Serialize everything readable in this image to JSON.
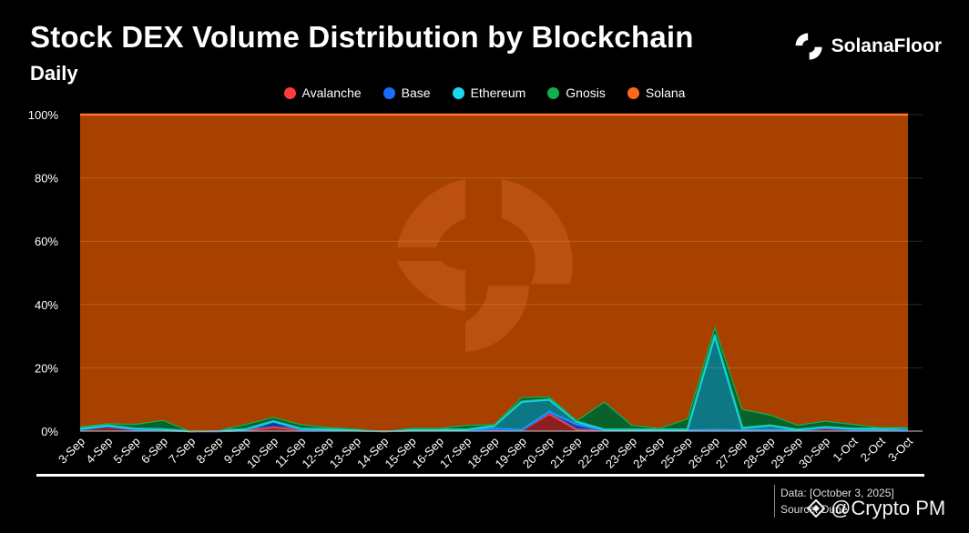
{
  "header": {
    "title": "Stock DEX Volume Distribution by Blockchain",
    "subtitle": "Daily",
    "brand": "SolanaFloor"
  },
  "note": {
    "date": "Data: [October 3, 2025]",
    "source": "Source: Dune"
  },
  "watermark": {
    "text": "@Crypto PM"
  },
  "chart_data": {
    "type": "area",
    "stacked": true,
    "normalized": true,
    "categories": [
      "3-Sep",
      "4-Sep",
      "5-Sep",
      "6-Sep",
      "7-Sep",
      "8-Sep",
      "9-Sep",
      "10-Sep",
      "11-Sep",
      "12-Sep",
      "13-Sep",
      "14-Sep",
      "15-Sep",
      "16-Sep",
      "17-Sep",
      "18-Sep",
      "19-Sep",
      "20-Sep",
      "21-Sep",
      "22-Sep",
      "23-Sep",
      "24-Sep",
      "25-Sep",
      "26-Sep",
      "27-Sep",
      "28-Sep",
      "29-Sep",
      "30-Sep",
      "1-Oct",
      "2-Oct",
      "3-Oct"
    ],
    "yticks": [
      "0%",
      "20%",
      "40%",
      "60%",
      "80%",
      "100%"
    ],
    "ylim": [
      0,
      100
    ],
    "legend_position": "top-center",
    "grid": true,
    "series": [
      {
        "name": "Avalanche",
        "color": "#ff3b3b",
        "values": [
          0.5,
          1.5,
          0.5,
          0.3,
          0,
          0,
          0.3,
          1.2,
          0.5,
          0.3,
          0.2,
          0,
          0.2,
          0.2,
          0.2,
          0.2,
          0.3,
          5.5,
          0.5,
          0.2,
          0.2,
          0.2,
          0.2,
          0.3,
          0.2,
          0.3,
          0.2,
          1.0,
          0.5,
          0.3,
          0.3
        ]
      },
      {
        "name": "Base",
        "color": "#1a6cff",
        "values": [
          0,
          0,
          0,
          0,
          0,
          0,
          0,
          1.8,
          0,
          0,
          0,
          0,
          0,
          0,
          0,
          0.5,
          0,
          0.5,
          1.5,
          0,
          0,
          0,
          0,
          0,
          0,
          0,
          0,
          0,
          0,
          0,
          0
        ]
      },
      {
        "name": "Ethereum",
        "color": "#1ad8f0",
        "values": [
          0.3,
          0.3,
          0.3,
          0.3,
          0,
          0.2,
          0.3,
          0.2,
          0.3,
          0.3,
          0.3,
          0.1,
          0.3,
          0.3,
          0.3,
          1.0,
          9.0,
          4.0,
          1.0,
          0.3,
          0.3,
          0.3,
          0.3,
          30.0,
          0.8,
          1.5,
          0.3,
          0.3,
          0.3,
          0.5,
          1.0
        ]
      },
      {
        "name": "Gnosis",
        "color": "#10b050",
        "values": [
          0.7,
          0.7,
          1.5,
          3.0,
          0,
          0.1,
          1.7,
          1.3,
          1.4,
          0.7,
          0.3,
          0,
          0.5,
          0.5,
          1.5,
          0.5,
          1.5,
          1.0,
          0.5,
          8.9,
          1.5,
          0.5,
          3.5,
          3.0,
          6.0,
          3.5,
          1.5,
          2.0,
          1.5,
          0.5,
          0
        ]
      },
      {
        "name": "Solana",
        "color": "#ff6a1a",
        "values": [
          98.5,
          97.5,
          97.7,
          96.4,
          100,
          99.7,
          97.7,
          95.5,
          97.8,
          98.7,
          99.2,
          99.9,
          99.0,
          99.0,
          98.0,
          97.8,
          89.2,
          89.0,
          96.5,
          90.6,
          98.0,
          99.0,
          96.0,
          66.7,
          93.0,
          94.7,
          98.0,
          96.7,
          97.7,
          98.7,
          98.7
        ]
      }
    ]
  }
}
